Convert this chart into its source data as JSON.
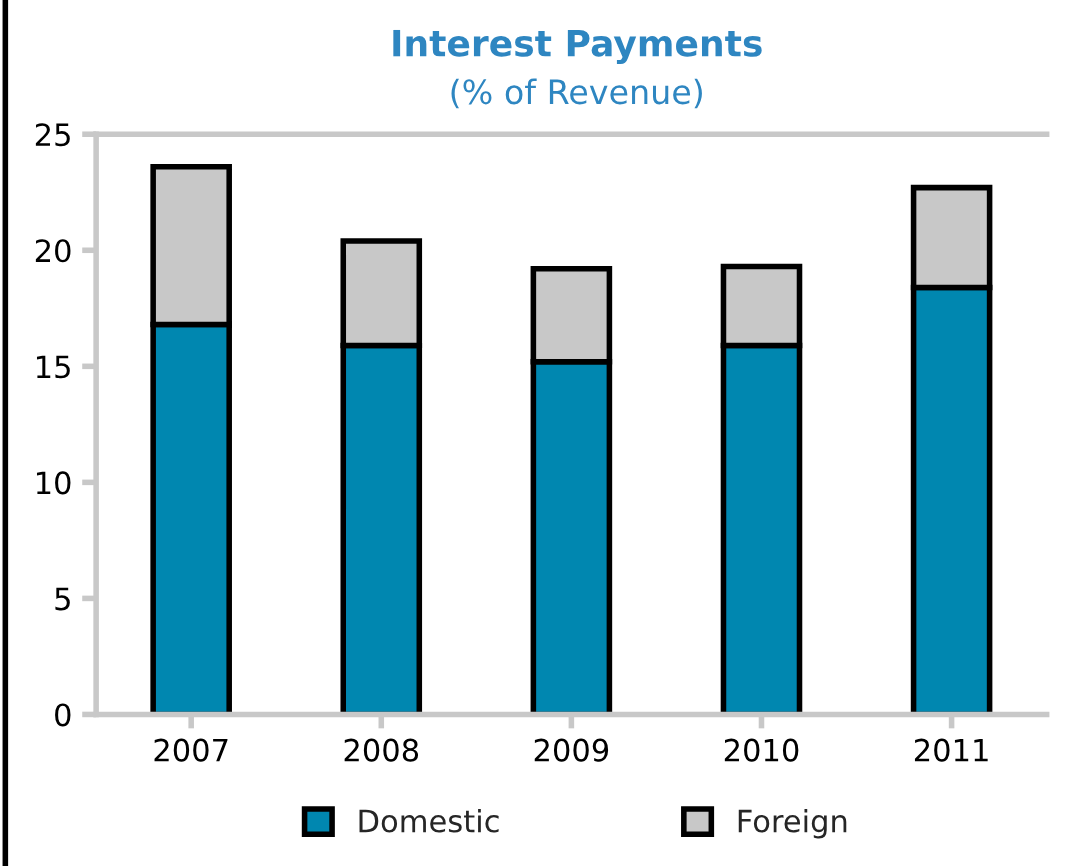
{
  "chart_data": {
    "type": "bar",
    "title": "Interest Payments",
    "subtitle": "(% of Revenue)",
    "categories": [
      "2007",
      "2008",
      "2009",
      "2010",
      "2011"
    ],
    "stacked": true,
    "series": [
      {
        "name": "Domestic",
        "color": "#0087b0",
        "values": [
          16.8,
          15.9,
          15.2,
          15.9,
          18.4
        ]
      },
      {
        "name": "Foreign",
        "color": "#c8c8c8",
        "values": [
          6.8,
          4.5,
          4.0,
          3.4,
          4.3
        ]
      }
    ],
    "ylim": [
      0,
      25
    ],
    "yticks": [
      0,
      5,
      10,
      15,
      20,
      25
    ],
    "grid": false,
    "legend": "bottom"
  }
}
